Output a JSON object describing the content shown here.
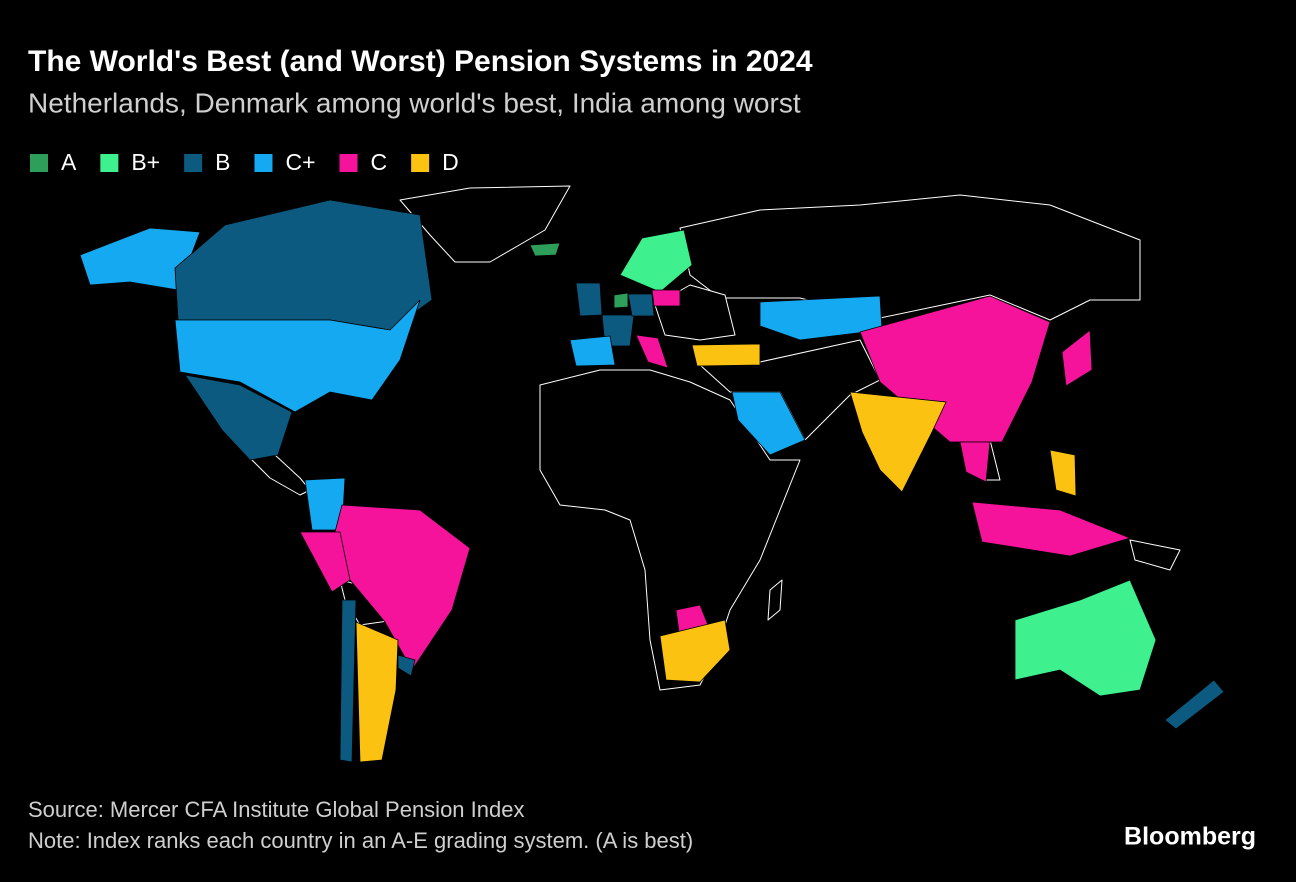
{
  "header": {
    "title": "The World's Best (and Worst) Pension Systems in 2024",
    "subtitle": "Netherlands, Denmark among world's best, India among worst"
  },
  "legend": [
    {
      "label": "A",
      "color": "#2e9e5b"
    },
    {
      "label": "B+",
      "color": "#3ff08f"
    },
    {
      "label": "B",
      "color": "#0d5a80"
    },
    {
      "label": "C+",
      "color": "#14a9f0"
    },
    {
      "label": "C",
      "color": "#f5139b"
    },
    {
      "label": "D",
      "color": "#fcc211"
    }
  ],
  "footer": {
    "source": "Source: Mercer CFA Institute Global Pension Index",
    "note": "Note: Index ranks each country in an A-E grading system. (A is best)",
    "brand": "Bloomberg"
  }
}
